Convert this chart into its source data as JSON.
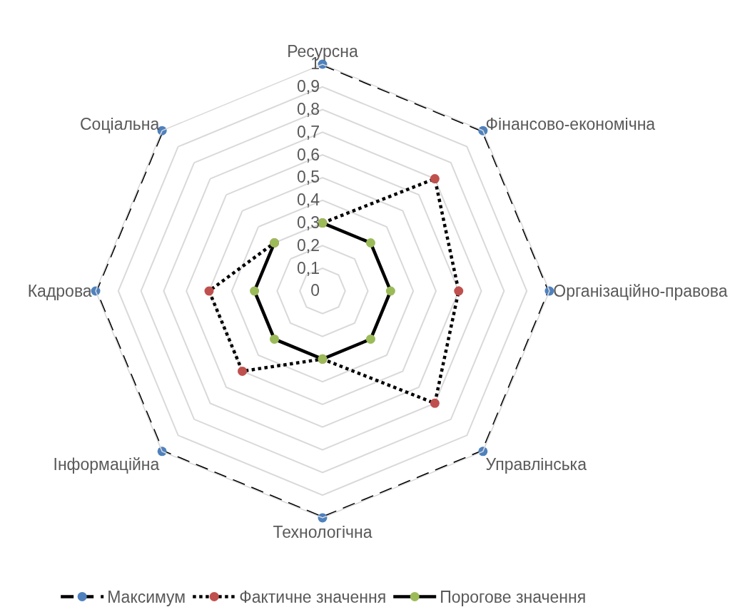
{
  "chart_data": {
    "type": "radar",
    "categories": [
      "Ресурсна",
      "Фінансово-економічна",
      "Організаційно-правова",
      "Управлінська",
      "Технологічна",
      "Інформаційна",
      "Кадрова",
      "Соціальна"
    ],
    "series": [
      {
        "name": "Максимум",
        "color": "#000000",
        "colors": [
          "#4f81bd",
          "#4f81bd",
          "#4f81bd",
          "#4f81bd",
          "#4f81bd",
          "#4f81bd",
          "#4f81bd",
          "#4f81bd"
        ],
        "line_style": "dashed",
        "values": [
          1,
          1,
          1,
          1,
          1,
          1,
          1,
          1
        ]
      },
      {
        "name": "Фактичне значення",
        "color": "#000000",
        "colors": [
          "#c0504d",
          "#c0504d",
          "#c0504d",
          "#c0504d",
          "#c0504d",
          "#c0504d",
          "#c0504d",
          "#c0504d"
        ],
        "line_style": "dotted",
        "values": [
          0.3,
          0.7,
          0.6,
          0.7,
          0.3,
          0.5,
          0.5,
          0.3
        ]
      },
      {
        "name": "Порогове значення",
        "color": "#000000",
        "colors": [
          "#9bbb59",
          "#9bbb59",
          "#9bbb59",
          "#9bbb59",
          "#9bbb59",
          "#9bbb59",
          "#9bbb59",
          "#9bbb59"
        ],
        "line_style": "solid",
        "values": [
          0.3,
          0.3,
          0.3,
          0.3,
          0.3,
          0.3,
          0.3,
          0.3
        ]
      }
    ],
    "ylim": [
      0,
      1
    ],
    "yticks": [
      0,
      {
        "value": 0.1,
        "label": "0,1"
      },
      {
        "value": 0.2,
        "label": "0,2"
      },
      {
        "value": 0.3,
        "label": "0,3"
      },
      {
        "value": 0.4,
        "label": "0,4"
      },
      {
        "value": 0.5,
        "label": "0,5"
      },
      {
        "value": 0.6,
        "label": "0,6"
      },
      {
        "value": 0.7,
        "label": "0,7"
      },
      {
        "value": 0.8,
        "label": "0,8"
      },
      {
        "value": 0.9,
        "label": "0,9"
      },
      1
    ],
    "grid": true,
    "legend": "bottom",
    "marker": "circle"
  }
}
